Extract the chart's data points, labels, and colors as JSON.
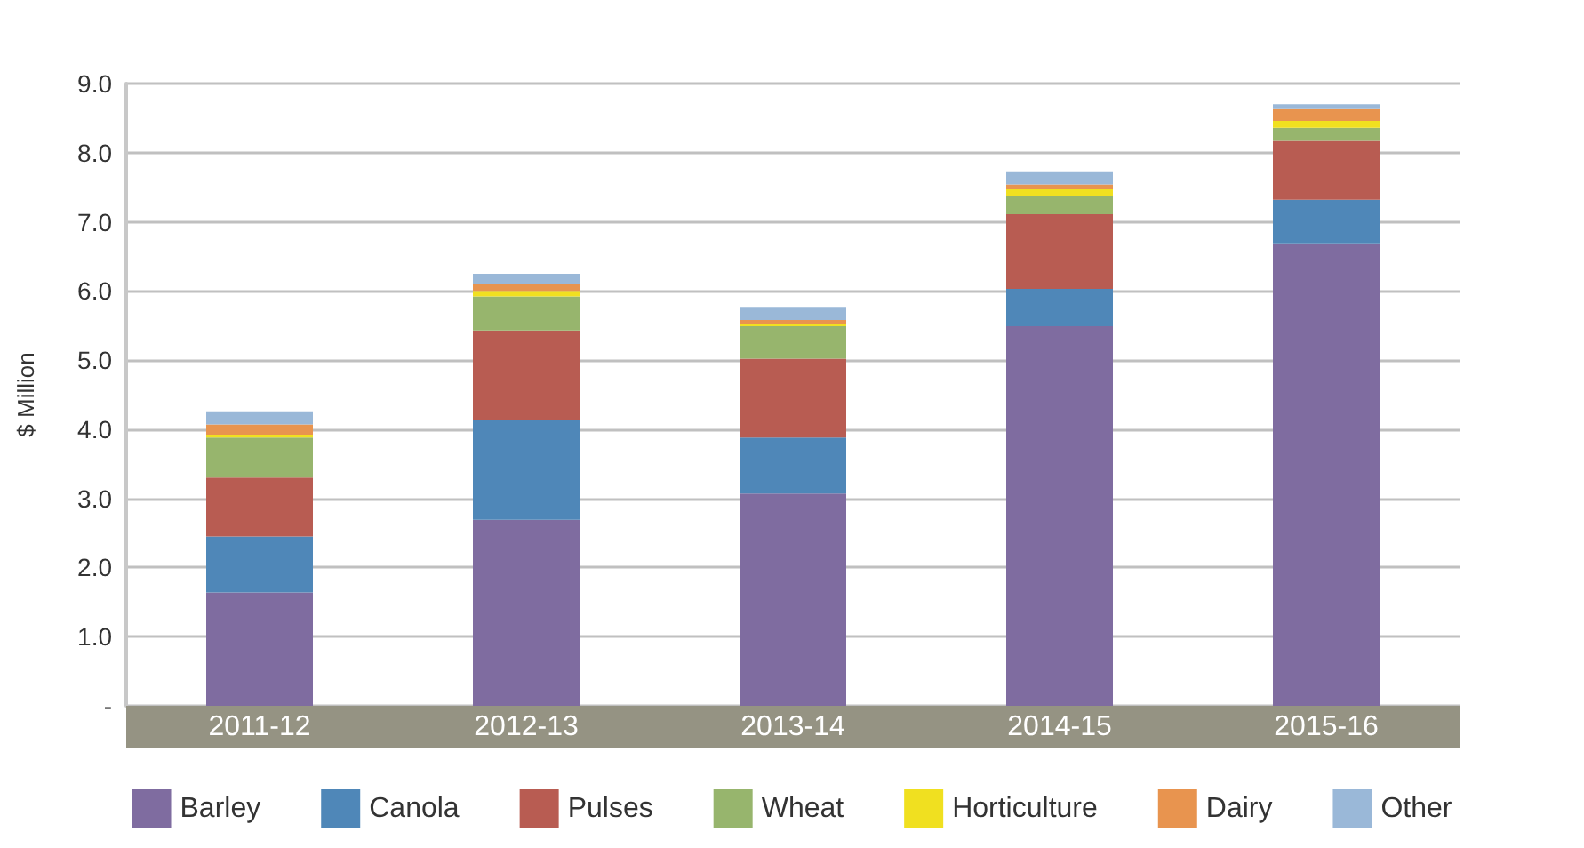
{
  "chart_data": {
    "type": "bar",
    "stacked": true,
    "ylabel": "$ Million",
    "categories": [
      "2011-12",
      "2012-13",
      "2013-14",
      "2014-15",
      "2015-16"
    ],
    "series": [
      {
        "name": "Barley",
        "color": "#7f6ca0",
        "values": [
          1.64,
          2.69,
          3.07,
          5.49,
          6.69
        ]
      },
      {
        "name": "Canola",
        "color": "#4f87b8",
        "values": [
          0.81,
          1.44,
          0.81,
          0.54,
          0.63
        ]
      },
      {
        "name": "Pulses",
        "color": "#b85c52",
        "values": [
          0.85,
          1.3,
          1.14,
          1.08,
          0.85
        ]
      },
      {
        "name": "Wheat",
        "color": "#97b56d",
        "values": [
          0.58,
          0.49,
          0.47,
          0.27,
          0.19
        ]
      },
      {
        "name": "Horticulture",
        "color": "#f0e020",
        "values": [
          0.04,
          0.08,
          0.04,
          0.09,
          0.1
        ]
      },
      {
        "name": "Dairy",
        "color": "#e8944f",
        "values": [
          0.15,
          0.1,
          0.05,
          0.07,
          0.17
        ]
      },
      {
        "name": "Other",
        "color": "#9ab8d8",
        "values": [
          0.19,
          0.15,
          0.19,
          0.19,
          0.07
        ]
      }
    ],
    "ylim": [
      0,
      9
    ],
    "yticks": [
      {
        "value": 0,
        "label": "-"
      },
      {
        "value": 1,
        "label": "1.0"
      },
      {
        "value": 2,
        "label": "2.0"
      },
      {
        "value": 3,
        "label": "3.0"
      },
      {
        "value": 4,
        "label": "4.0"
      },
      {
        "value": 5,
        "label": "5.0"
      },
      {
        "value": 6,
        "label": "6.0"
      },
      {
        "value": 7,
        "label": "7.0"
      },
      {
        "value": 8,
        "label": "8.0"
      },
      {
        "value": 9,
        "label": "9.0"
      }
    ],
    "grid": "y",
    "legend": "bottom"
  }
}
